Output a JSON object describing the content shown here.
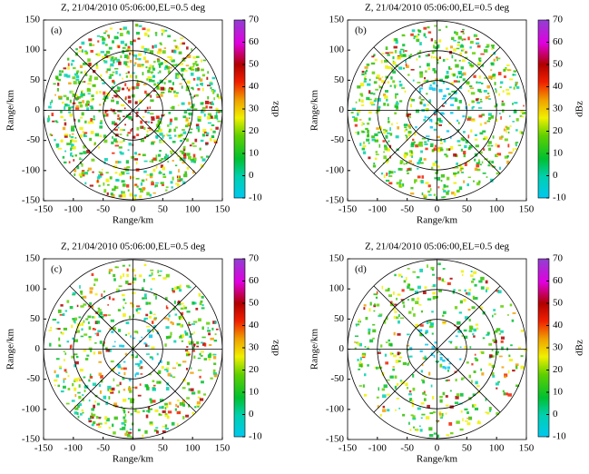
{
  "chart_data": [
    {
      "type": "ppi",
      "title": "Z, 21/04/2010 05:06:00,EL=0.5  deg",
      "panel_label": "(a)",
      "xlabel": "Range/km",
      "ylabel": "Range/km",
      "xlim": [
        -150,
        150
      ],
      "ylim": [
        -150,
        150
      ],
      "xticks": [
        -150,
        -100,
        -50,
        0,
        50,
        100,
        150
      ],
      "yticks": [
        -150,
        -100,
        -50,
        0,
        50,
        100,
        150
      ],
      "range_rings": [
        50,
        100,
        150
      ],
      "colorbar": {
        "label": "dBz",
        "lim": [
          -10,
          70
        ],
        "ticks": [
          -10,
          0,
          10,
          20,
          30,
          40,
          50,
          60,
          70
        ]
      }
    },
    {
      "type": "ppi",
      "title": "Z, 21/04/2010 05:06:00,EL=0.5  deg",
      "panel_label": "(b)",
      "xlabel": "Range/km",
      "ylabel": "Range/km",
      "xlim": [
        -150,
        150
      ],
      "ylim": [
        -150,
        150
      ],
      "xticks": [
        -150,
        -100,
        -50,
        0,
        50,
        100,
        150
      ],
      "yticks": [
        -150,
        -100,
        -50,
        0,
        50,
        100,
        150
      ],
      "range_rings": [
        50,
        100,
        150
      ],
      "colorbar": {
        "label": "dBz",
        "lim": [
          -10,
          70
        ],
        "ticks": [
          -10,
          0,
          10,
          20,
          30,
          40,
          50,
          60,
          70
        ]
      }
    },
    {
      "type": "ppi",
      "title": "Z, 21/04/2010 05:06:00,EL=0.5  deg",
      "panel_label": "(c)",
      "xlabel": "Range/km",
      "ylabel": "Range/km",
      "xlim": [
        -150,
        150
      ],
      "ylim": [
        -150,
        150
      ],
      "xticks": [
        -150,
        -100,
        -50,
        0,
        50,
        100,
        150
      ],
      "yticks": [
        -150,
        -100,
        -50,
        0,
        50,
        100,
        150
      ],
      "range_rings": [
        50,
        100,
        150
      ],
      "colorbar": {
        "label": "dBz",
        "lim": [
          -10,
          70
        ],
        "ticks": [
          -10,
          0,
          10,
          20,
          30,
          40,
          50,
          60,
          70
        ]
      }
    },
    {
      "type": "ppi",
      "title": "Z, 21/04/2010 05:06:00,EL=0.5  deg",
      "panel_label": "(d)",
      "xlabel": "Range/km",
      "ylabel": "Range/km",
      "xlim": [
        -150,
        150
      ],
      "ylim": [
        -150,
        150
      ],
      "xticks": [
        -150,
        -100,
        -50,
        0,
        50,
        100,
        150
      ],
      "yticks": [
        -150,
        -100,
        -50,
        0,
        50,
        100,
        150
      ],
      "range_rings": [
        50,
        100,
        150
      ],
      "colorbar": {
        "label": "dBz",
        "lim": [
          -10,
          70
        ],
        "ticks": [
          -10,
          0,
          10,
          20,
          30,
          40,
          50,
          60,
          70
        ]
      }
    }
  ]
}
